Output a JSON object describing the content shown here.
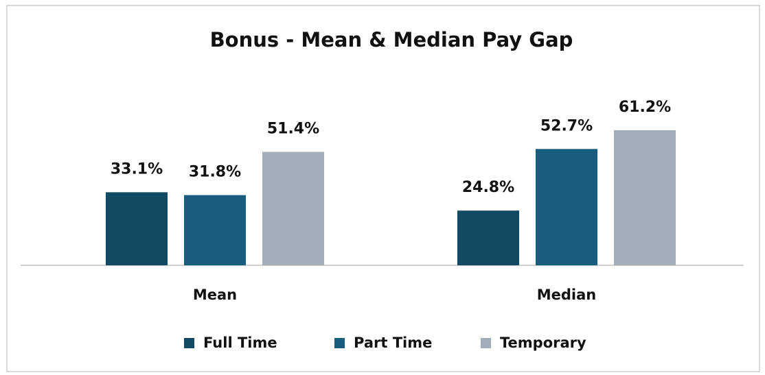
{
  "chart_data": {
    "type": "bar",
    "title": "Bonus - Mean & Median Pay Gap",
    "categories": [
      "Mean",
      "Median"
    ],
    "series": [
      {
        "name": "Full Time",
        "color": "#124a63",
        "values": [
          33.1,
          24.8
        ],
        "value_labels": [
          "33.1%",
          "24.8%"
        ]
      },
      {
        "name": "Part Time",
        "color": "#185d7e",
        "values": [
          31.8,
          52.7
        ],
        "value_labels": [
          "31.8%",
          "52.7%"
        ]
      },
      {
        "name": "Temporary",
        "color": "#a1aeb9",
        "values": [
          51.4,
          61.2
        ],
        "value_labels": [
          "51.4%",
          "61.2%"
        ]
      }
    ]
  }
}
